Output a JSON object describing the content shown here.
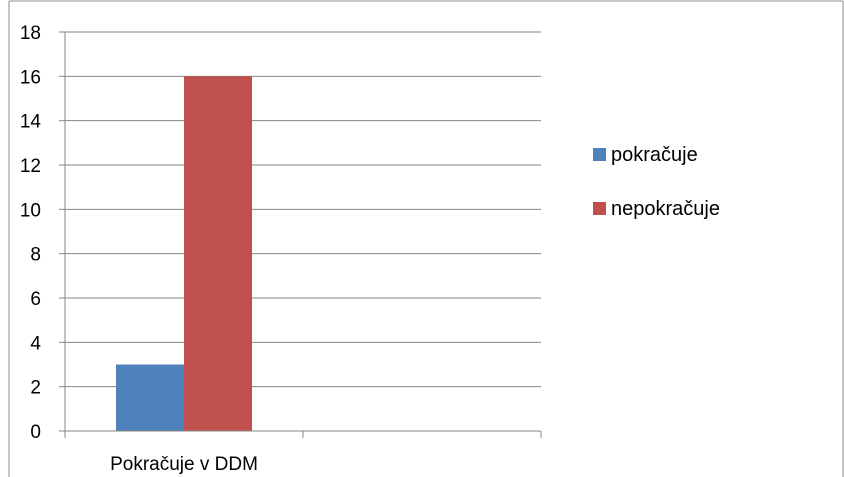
{
  "chart_data": {
    "type": "bar",
    "title": "",
    "xlabel": "",
    "ylabel": "",
    "categories": [
      "Pokračuje v DDM",
      ""
    ],
    "series": [
      {
        "name": "pokračuje",
        "values": [
          3,
          null
        ],
        "color": "#4f81bd"
      },
      {
        "name": "nepokračuje",
        "values": [
          16,
          null
        ],
        "color": "#c0504d"
      }
    ],
    "ylim": [
      0,
      18
    ],
    "yticks": [
      "0",
      "2",
      "4",
      "6",
      "8",
      "10",
      "12",
      "14",
      "16",
      "18"
    ],
    "grid": true,
    "legend_position": "right"
  }
}
